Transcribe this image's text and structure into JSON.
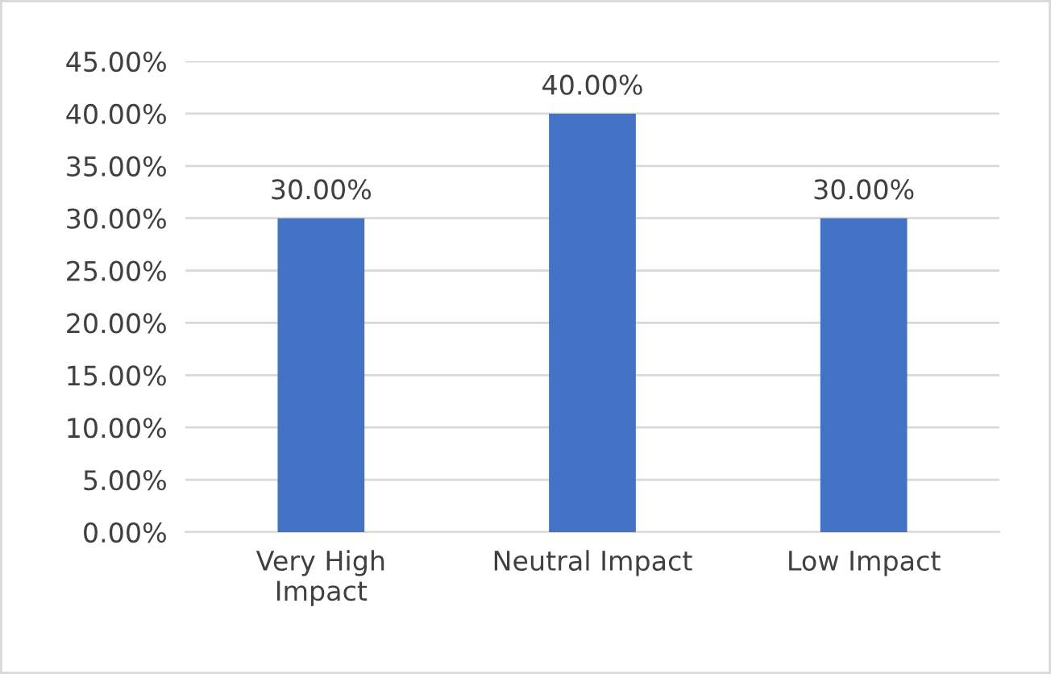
{
  "chart_data": {
    "type": "bar",
    "categories": [
      "Very High\nImpact",
      "Neutral Impact",
      "Low Impact"
    ],
    "values": [
      30,
      40,
      30
    ],
    "color": "#4472c4",
    "value_labels": [
      "30.00%",
      "40.00%",
      "30.00%"
    ],
    "ylim": [
      0,
      45
    ],
    "yticks": [
      {
        "value": 0,
        "label": "0.00%"
      },
      {
        "value": 5,
        "label": "5.00%"
      },
      {
        "value": 10,
        "label": "10.00%"
      },
      {
        "value": 15,
        "label": "15.00%"
      },
      {
        "value": 20,
        "label": "20.00%"
      },
      {
        "value": 25,
        "label": "25.00%"
      },
      {
        "value": 30,
        "label": "30.00%"
      },
      {
        "value": 35,
        "label": "35.00%"
      },
      {
        "value": 40,
        "label": "40.00%"
      },
      {
        "value": 45,
        "label": "45.00%"
      }
    ],
    "grid": "y",
    "legend": false
  }
}
